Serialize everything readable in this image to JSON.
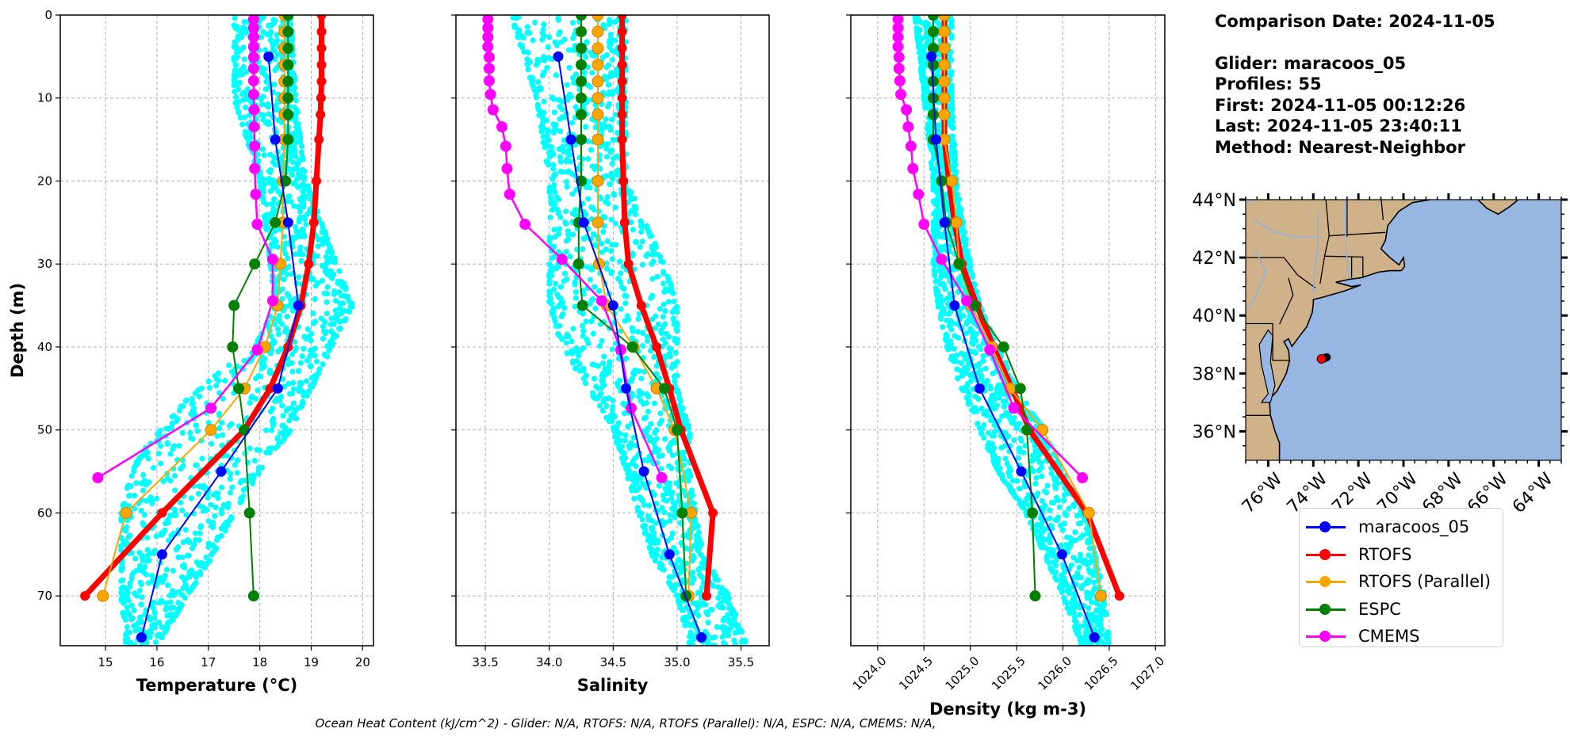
{
  "info": {
    "comparison_date": "Comparison Date: 2024-11-05",
    "glider": "Glider: maracoos_05",
    "profiles": "Profiles: 55",
    "first": "First: 2024-11-05 00:12:26",
    "last": "Last: 2024-11-05 23:40:11",
    "method": "Method: Nearest-Neighbor"
  },
  "footer": "Ocean Heat Content (kJ/cm^2) - Glider: N/A,  RTOFS: N/A,  RTOFS (Parallel): N/A,  ESPC: N/A,  CMEMS: N/A,",
  "legend": [
    {
      "label": "maracoos_05",
      "color": "#0000ff"
    },
    {
      "label": "RTOFS",
      "color": "#ff0000"
    },
    {
      "label": "RTOFS (Parallel)",
      "color": "#ffa500"
    },
    {
      "label": "ESPC",
      "color": "#008000"
    },
    {
      "label": "CMEMS",
      "color": "#ff00ff"
    }
  ],
  "glider_scatter_color": "#00ffff",
  "chart_data": [
    {
      "type": "line",
      "title": "",
      "xlabel": "Temperature (°C)",
      "ylabel": "Depth (m)",
      "xlim": [
        14.12,
        20.21
      ],
      "ylim": [
        76,
        0
      ],
      "grid": true,
      "xticks": [
        15,
        16,
        17,
        18,
        19,
        20
      ],
      "xtick_labels": [
        "15",
        "16",
        "17",
        "18",
        "19",
        "20"
      ],
      "yticks": [
        0,
        10,
        20,
        30,
        40,
        50,
        60,
        70
      ],
      "ytick_labels": [
        "0",
        "10",
        "20",
        "30",
        "40",
        "50",
        "60",
        "70"
      ],
      "glider_scatter_envelope": {
        "depth": [
          0,
          10,
          20,
          30,
          35,
          40,
          45,
          50,
          55,
          60,
          65,
          70,
          76
        ],
        "min": [
          17.5,
          17.5,
          18.0,
          18.2,
          18.3,
          17.9,
          16.8,
          16.0,
          15.5,
          15.3,
          15.3,
          15.3,
          15.4
        ],
        "max": [
          18.6,
          18.7,
          18.9,
          19.5,
          19.8,
          19.4,
          19.0,
          18.6,
          18.0,
          17.5,
          17.1,
          16.6,
          16.0
        ]
      },
      "series": [
        {
          "name": "RTOFS",
          "depth": [
            0,
            2,
            4,
            6,
            8,
            10,
            12,
            15,
            20,
            25,
            30,
            35,
            40,
            45,
            50,
            60,
            70
          ],
          "values": [
            19.2,
            19.2,
            19.2,
            19.2,
            19.2,
            19.19,
            19.18,
            19.15,
            19.1,
            19.05,
            18.95,
            18.8,
            18.55,
            18.2,
            17.7,
            16.1,
            14.6
          ]
        },
        {
          "name": "RTOFS (Parallel)",
          "depth": [
            0,
            2,
            4,
            6,
            8,
            10,
            12,
            15,
            20,
            25,
            30,
            35,
            40,
            45,
            50,
            60,
            70
          ],
          "values": [
            18.48,
            18.48,
            18.48,
            18.48,
            18.48,
            18.48,
            18.48,
            18.48,
            18.45,
            18.45,
            18.4,
            18.35,
            18.1,
            17.7,
            17.05,
            15.4,
            14.95
          ]
        },
        {
          "name": "ESPC",
          "depth": [
            0,
            2,
            4,
            6,
            8,
            10,
            12,
            15,
            20,
            25,
            30,
            35,
            40,
            45,
            50,
            60,
            70
          ],
          "values": [
            18.55,
            18.55,
            18.55,
            18.55,
            18.55,
            18.55,
            18.55,
            18.55,
            18.5,
            18.3,
            17.9,
            17.5,
            17.47,
            17.59,
            17.7,
            17.8,
            17.88
          ]
        },
        {
          "name": "CMEMS",
          "depth": [
            0.49,
            1.54,
            2.65,
            3.82,
            5.08,
            6.44,
            7.93,
            9.57,
            11.41,
            13.47,
            15.81,
            18.5,
            21.6,
            25.21,
            29.44,
            34.43,
            40.34,
            47.37,
            55.76
          ],
          "values": [
            17.88,
            17.88,
            17.88,
            17.88,
            17.88,
            17.88,
            17.88,
            17.88,
            17.89,
            17.89,
            17.9,
            17.9,
            17.92,
            17.95,
            18.25,
            18.25,
            17.95,
            17.05,
            14.85
          ]
        },
        {
          "name": "maracoos_05",
          "depth": [
            5,
            15,
            25,
            35,
            45,
            55,
            65,
            75
          ],
          "values": [
            18.17,
            18.3,
            18.55,
            18.75,
            18.35,
            17.25,
            16.1,
            15.7
          ]
        }
      ]
    },
    {
      "type": "line",
      "title": "",
      "xlabel": "Salinity",
      "xlim": [
        33.27,
        35.72
      ],
      "ylim": [
        76,
        0
      ],
      "grid": true,
      "xticks": [
        33.5,
        34.0,
        34.5,
        35.0,
        35.5
      ],
      "xtick_labels": [
        "33.5",
        "34.0",
        "34.5",
        "35.0",
        "35.5"
      ],
      "yticks": [
        0,
        10,
        20,
        30,
        40,
        50,
        60,
        70
      ],
      "glider_scatter_envelope": {
        "depth": [
          0,
          10,
          20,
          30,
          35,
          40,
          45,
          50,
          55,
          60,
          65,
          70,
          76
        ],
        "min": [
          33.7,
          33.9,
          34.0,
          34.0,
          34.0,
          34.1,
          34.3,
          34.5,
          34.6,
          34.7,
          34.8,
          35.0,
          35.1
        ],
        "max": [
          34.6,
          34.6,
          34.6,
          34.9,
          35.0,
          35.0,
          35.0,
          35.1,
          35.1,
          35.15,
          35.2,
          35.4,
          35.55
        ]
      },
      "series": [
        {
          "name": "RTOFS",
          "depth": [
            0,
            2,
            4,
            6,
            8,
            10,
            12,
            15,
            20,
            25,
            30,
            35,
            40,
            45,
            50,
            60,
            70
          ],
          "values": [
            34.57,
            34.57,
            34.57,
            34.57,
            34.57,
            34.57,
            34.57,
            34.57,
            34.58,
            34.59,
            34.62,
            34.72,
            34.84,
            34.94,
            35.03,
            35.28,
            35.23
          ]
        },
        {
          "name": "RTOFS (Parallel)",
          "depth": [
            0,
            2,
            4,
            6,
            8,
            10,
            12,
            15,
            20,
            25,
            30,
            35,
            40,
            45,
            50,
            60,
            70
          ],
          "values": [
            34.38,
            34.38,
            34.38,
            34.38,
            34.38,
            34.38,
            34.38,
            34.38,
            34.38,
            34.38,
            34.39,
            34.45,
            34.66,
            34.84,
            34.98,
            35.11,
            35.09
          ]
        },
        {
          "name": "ESPC",
          "depth": [
            0,
            2,
            4,
            6,
            8,
            10,
            12,
            15,
            20,
            25,
            30,
            35,
            40,
            45,
            50,
            60,
            70
          ],
          "values": [
            34.25,
            34.25,
            34.25,
            34.25,
            34.25,
            34.25,
            34.25,
            34.25,
            34.25,
            34.23,
            34.23,
            34.26,
            34.65,
            34.9,
            35.0,
            35.04,
            35.07
          ]
        },
        {
          "name": "CMEMS",
          "depth": [
            0.49,
            1.54,
            2.65,
            3.82,
            5.08,
            6.44,
            7.93,
            9.57,
            11.41,
            13.47,
            15.81,
            18.5,
            21.6,
            25.21,
            29.44,
            34.43,
            40.34,
            47.37,
            55.76
          ],
          "values": [
            33.52,
            33.52,
            33.52,
            33.52,
            33.53,
            33.53,
            33.53,
            33.54,
            33.56,
            33.63,
            33.66,
            33.67,
            33.69,
            33.81,
            34.1,
            34.41,
            34.56,
            34.64,
            34.88
          ]
        },
        {
          "name": "maracoos_05",
          "depth": [
            5,
            15,
            25,
            35,
            45,
            55,
            65,
            75
          ],
          "values": [
            34.07,
            34.17,
            34.27,
            34.5,
            34.6,
            34.74,
            34.94,
            35.19
          ]
        }
      ]
    },
    {
      "type": "line",
      "title": "",
      "xlabel": "Density (kg m-3)",
      "xlim": [
        1023.71,
        1027.1
      ],
      "ylim": [
        76,
        0
      ],
      "grid": true,
      "xticks": [
        1024.0,
        1024.5,
        1025.0,
        1025.5,
        1026.0,
        1026.5,
        1027.0
      ],
      "xtick_labels": [
        "1024.0",
        "1024.5",
        "1025.0",
        "1025.5",
        "1026.0",
        "1026.5",
        "1027.0"
      ],
      "yticks": [
        0,
        10,
        20,
        30,
        40,
        50,
        60,
        70
      ],
      "glider_scatter_envelope": {
        "depth": [
          0,
          10,
          20,
          30,
          35,
          40,
          45,
          50,
          55,
          60,
          65,
          70,
          76
        ],
        "min": [
          1024.4,
          1024.5,
          1024.6,
          1024.6,
          1024.65,
          1024.75,
          1024.9,
          1025.1,
          1025.3,
          1025.6,
          1025.8,
          1026.0,
          1026.2
        ],
        "max": [
          1024.8,
          1024.8,
          1024.85,
          1025.0,
          1025.1,
          1025.3,
          1025.5,
          1025.8,
          1026.0,
          1026.25,
          1026.35,
          1026.45,
          1026.5
        ]
      },
      "series": [
        {
          "name": "RTOFS",
          "depth": [
            0,
            2,
            4,
            6,
            8,
            10,
            12,
            15,
            20,
            25,
            30,
            35,
            40,
            45,
            50,
            60,
            70
          ],
          "values": [
            1024.72,
            1024.72,
            1024.72,
            1024.72,
            1024.72,
            1024.72,
            1024.72,
            1024.72,
            1024.77,
            1024.83,
            1024.91,
            1025.07,
            1025.25,
            1025.45,
            1025.64,
            1026.26,
            1026.61
          ]
        },
        {
          "name": "RTOFS (Parallel)",
          "depth": [
            0,
            2,
            4,
            6,
            8,
            10,
            12,
            15,
            20,
            25,
            30,
            35,
            40,
            45,
            50,
            60,
            70
          ],
          "values": [
            1024.72,
            1024.72,
            1024.72,
            1024.72,
            1024.72,
            1024.72,
            1024.72,
            1024.72,
            1024.8,
            1024.85,
            1024.88,
            1025.01,
            1025.23,
            1025.43,
            1025.78,
            1026.28,
            1026.41
          ]
        },
        {
          "name": "ESPC",
          "depth": [
            0,
            2,
            4,
            6,
            8,
            10,
            12,
            15,
            20,
            25,
            30,
            35,
            40,
            45,
            50,
            60,
            70
          ],
          "values": [
            1024.6,
            1024.6,
            1024.6,
            1024.6,
            1024.6,
            1024.6,
            1024.6,
            1024.6,
            1024.69,
            1024.74,
            1024.88,
            1025.04,
            1025.36,
            1025.54,
            1025.61,
            1025.67,
            1025.7
          ]
        },
        {
          "name": "CMEMS",
          "depth": [
            0.49,
            1.54,
            2.65,
            3.82,
            5.08,
            6.44,
            7.93,
            9.57,
            11.41,
            13.47,
            15.81,
            18.5,
            21.6,
            25.21,
            29.44,
            34.43,
            40.34,
            47.37,
            55.76
          ],
          "values": [
            1024.22,
            1024.22,
            1024.22,
            1024.22,
            1024.23,
            1024.23,
            1024.24,
            1024.25,
            1024.31,
            1024.33,
            1024.36,
            1024.38,
            1024.44,
            1024.5,
            1024.69,
            1024.96,
            1025.21,
            1025.47,
            1026.21
          ]
        },
        {
          "name": "maracoos_05",
          "depth": [
            5,
            15,
            25,
            35,
            45,
            55,
            65,
            75
          ],
          "values": [
            1024.58,
            1024.63,
            1024.72,
            1024.83,
            1025.1,
            1025.55,
            1025.99,
            1026.34
          ]
        }
      ]
    }
  ],
  "map": {
    "lon_range": [
      -77,
      -63
    ],
    "lat_range": [
      35,
      44
    ],
    "lat_ticks": [
      36,
      38,
      40,
      42,
      44
    ],
    "lat_labels": [
      "36°N",
      "38°N",
      "40°N",
      "42°N",
      "44°N"
    ],
    "lon_ticks": [
      -76,
      -74,
      -72,
      -70,
      -68,
      -66,
      -64
    ],
    "lon_labels": [
      "76°W",
      "74°W",
      "72°W",
      "70°W",
      "68°W",
      "66°W",
      "64°W"
    ],
    "ocean_color": "#97b6e1",
    "land_color": "#cfb28a",
    "glider_track": [
      [
        -73.45,
        38.55
      ],
      [
        -73.4,
        38.56
      ],
      [
        -73.5,
        38.52
      ]
    ],
    "glider_position": [
      -73.64,
      38.5
    ],
    "glider_position_color": "#ff0000"
  }
}
